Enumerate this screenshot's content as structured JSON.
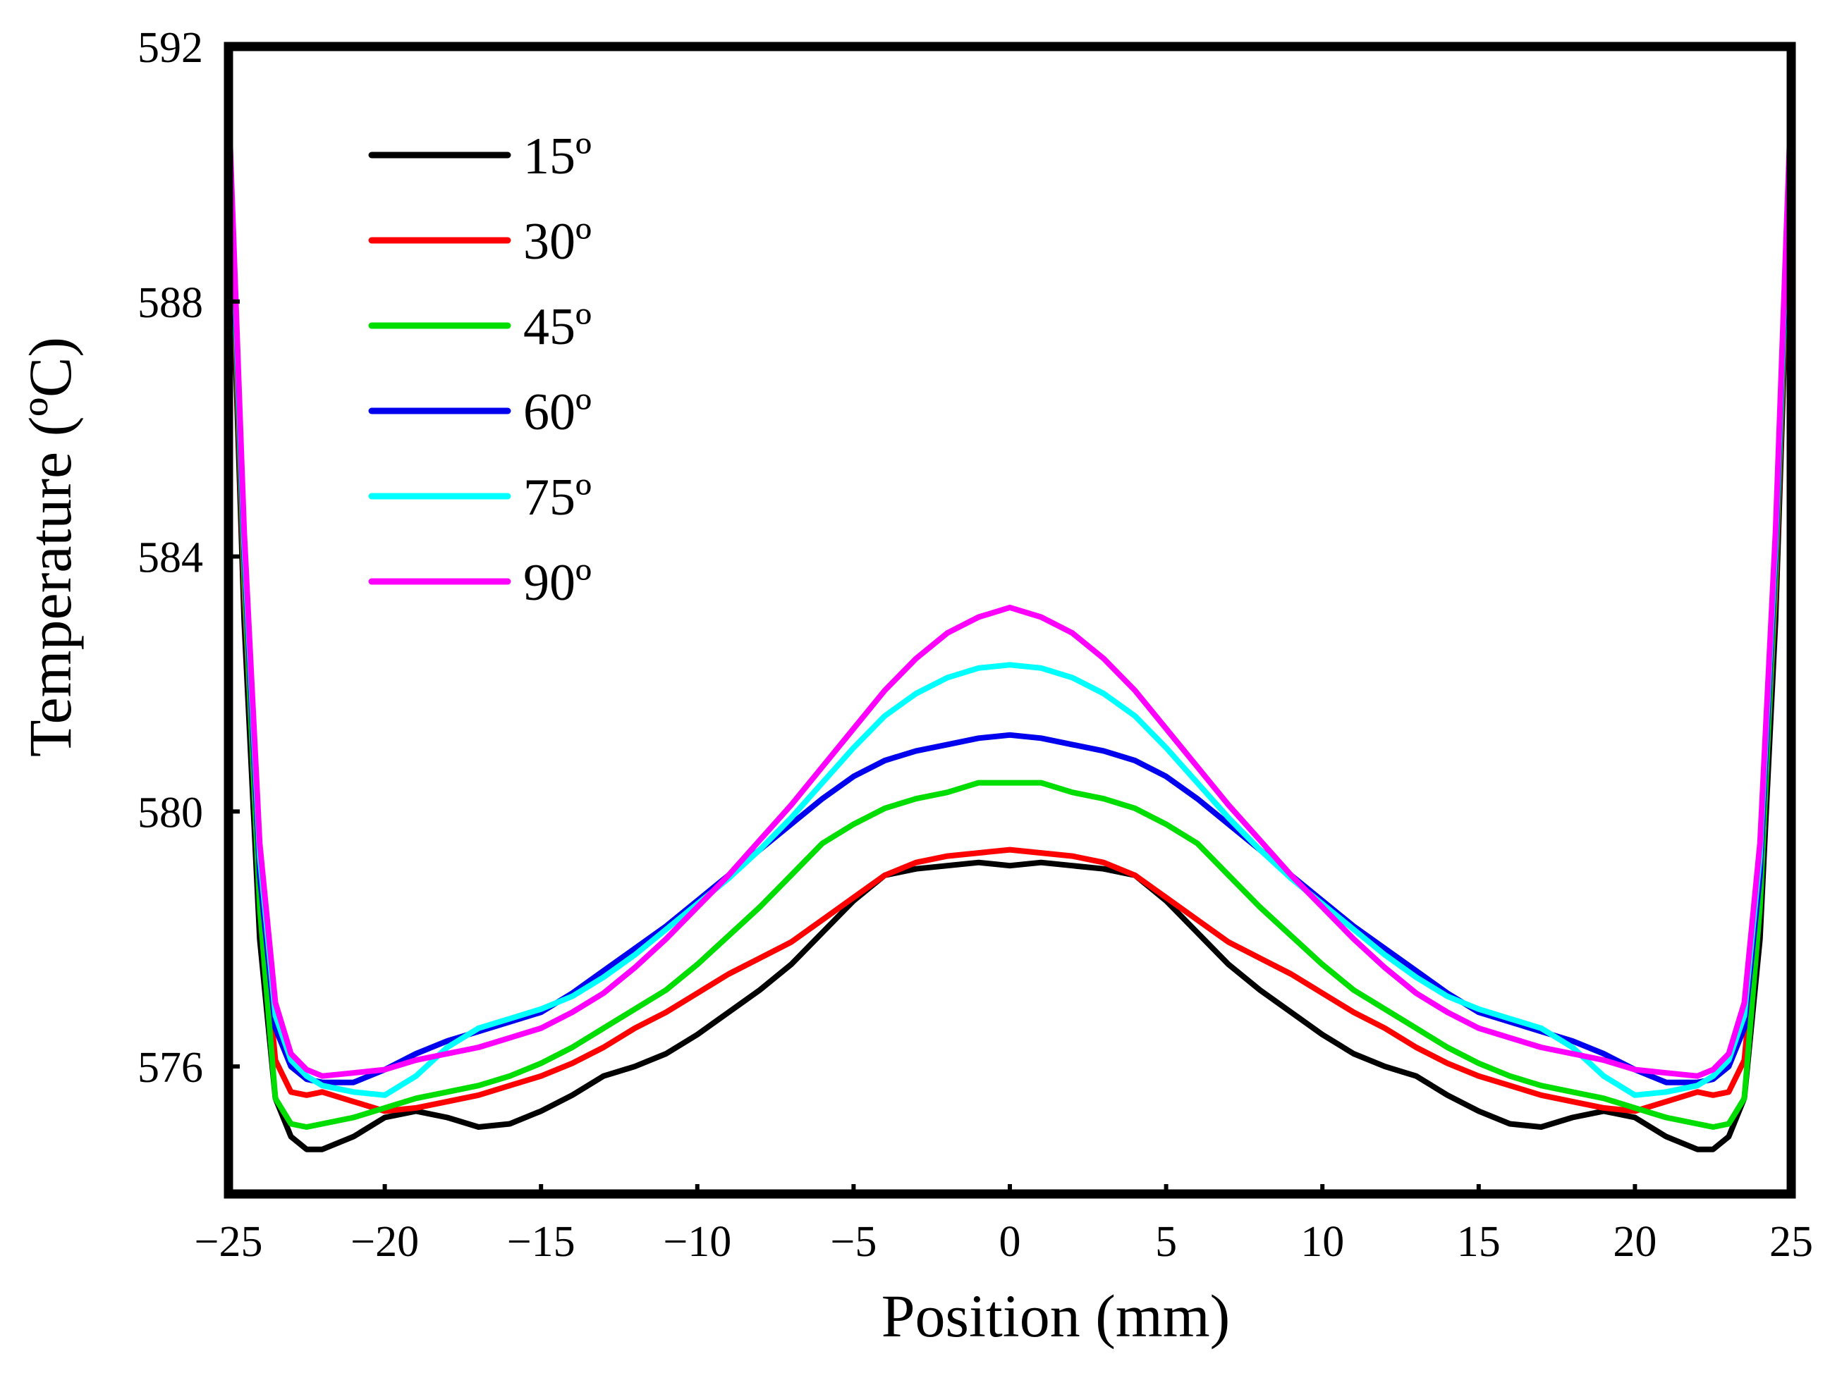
{
  "chart_data": {
    "type": "line",
    "title": "",
    "xlabel": "Position (mm)",
    "ylabel": "Temperature (ºC)",
    "xlim": [
      -25,
      25
    ],
    "ylim": [
      574,
      592
    ],
    "xticks": [
      -25,
      -20,
      -15,
      -10,
      -5,
      0,
      5,
      10,
      15,
      20,
      25
    ],
    "xtick_labels": [
      "−25",
      "−20",
      "−15",
      "−10",
      "−5",
      "0",
      "5",
      "10",
      "15",
      "20",
      "25"
    ],
    "yticks": [
      576,
      580,
      584,
      588,
      592
    ],
    "ytick_labels": [
      "576",
      "580",
      "584",
      "588",
      "592"
    ],
    "grid": false,
    "legend_position": "top-left",
    "x": [
      -25,
      -24.5,
      -24,
      -23.5,
      -23,
      -22.5,
      -22,
      -21,
      -20,
      -19,
      -18,
      -17,
      -16,
      -15,
      -14,
      -13,
      -12,
      -11,
      -10,
      -9,
      -8,
      -7,
      -6,
      -5,
      -4,
      -3,
      -2,
      -1,
      0
    ],
    "series": [
      {
        "name": "15º",
        "color": "#000000",
        "values": [
          590.5,
          583.0,
          578.0,
          575.5,
          574.9,
          574.7,
          574.7,
          574.9,
          575.2,
          575.3,
          575.2,
          575.05,
          575.1,
          575.3,
          575.55,
          575.85,
          576.0,
          576.2,
          576.5,
          576.85,
          577.2,
          577.6,
          578.1,
          578.6,
          579.0,
          579.1,
          579.15,
          579.2,
          579.15
        ]
      },
      {
        "name": "30º",
        "color": "#ff0000",
        "values": [
          590.7,
          583.5,
          578.7,
          576.1,
          575.6,
          575.55,
          575.6,
          575.45,
          575.3,
          575.35,
          575.45,
          575.55,
          575.7,
          575.85,
          576.05,
          576.3,
          576.6,
          576.85,
          577.15,
          577.45,
          577.7,
          577.95,
          578.3,
          578.65,
          579.0,
          579.2,
          579.3,
          579.35,
          579.4
        ]
      },
      {
        "name": "45º",
        "color": "#00dd00",
        "values": [
          590.9,
          583.7,
          578.5,
          575.5,
          575.1,
          575.05,
          575.1,
          575.2,
          575.35,
          575.5,
          575.6,
          575.7,
          575.85,
          576.05,
          576.3,
          576.6,
          576.9,
          577.2,
          577.6,
          578.05,
          578.5,
          579.0,
          579.5,
          579.8,
          580.05,
          580.2,
          580.3,
          580.45,
          580.45
        ]
      },
      {
        "name": "60º",
        "color": "#0000ee",
        "values": [
          591.0,
          584.0,
          579.0,
          576.6,
          576.0,
          575.8,
          575.75,
          575.75,
          575.95,
          576.2,
          576.4,
          576.55,
          576.7,
          576.85,
          577.15,
          577.5,
          577.85,
          578.2,
          578.6,
          579.0,
          579.4,
          579.8,
          580.2,
          580.55,
          580.8,
          580.95,
          581.05,
          581.15,
          581.2
        ]
      },
      {
        "name": "75º",
        "color": "#00ffff",
        "values": [
          591.1,
          584.2,
          579.3,
          576.8,
          576.1,
          575.85,
          575.7,
          575.6,
          575.55,
          575.85,
          576.3,
          576.6,
          576.75,
          576.9,
          577.1,
          577.4,
          577.75,
          578.15,
          578.55,
          578.95,
          579.4,
          579.9,
          580.45,
          581.0,
          581.5,
          581.85,
          582.1,
          582.25,
          582.3
        ]
      },
      {
        "name": "90º",
        "color": "#ff00ff",
        "values": [
          591.2,
          584.4,
          579.5,
          577.0,
          576.2,
          575.95,
          575.85,
          575.9,
          575.95,
          576.1,
          576.2,
          576.3,
          576.45,
          576.6,
          576.85,
          577.15,
          577.55,
          578.0,
          578.5,
          579.0,
          579.55,
          580.1,
          580.7,
          581.3,
          581.9,
          582.4,
          582.8,
          583.05,
          583.2
        ]
      }
    ]
  }
}
